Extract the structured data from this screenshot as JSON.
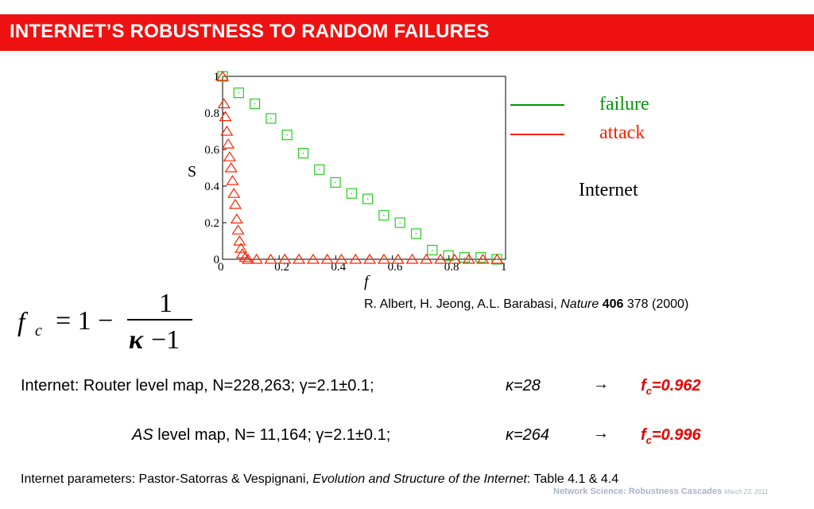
{
  "slide": {
    "title": "INTERNET’S ROBUSTNESS TO RANDOM FAILURES",
    "colors": {
      "title_bg": "#ee1111",
      "failure": "#009900",
      "attack": "#ff2200",
      "highlight": "#e60000"
    }
  },
  "plot": {
    "ylabel": "S",
    "xlabel": "f",
    "xticks": [
      "0",
      "0.2",
      "0.4",
      "0.6",
      "0.8",
      "1"
    ],
    "yticks": [
      "0",
      "0.2",
      "0.4",
      "0.6",
      "0.8",
      "1"
    ],
    "legend": {
      "failure": "failure",
      "attack": "attack"
    },
    "network_label": "Internet",
    "failure_points": [
      [
        0,
        1.0
      ],
      [
        0.057,
        0.91
      ],
      [
        0.114,
        0.85
      ],
      [
        0.171,
        0.77
      ],
      [
        0.228,
        0.68
      ],
      [
        0.285,
        0.58
      ],
      [
        0.342,
        0.49
      ],
      [
        0.399,
        0.42
      ],
      [
        0.456,
        0.36
      ],
      [
        0.513,
        0.33
      ],
      [
        0.57,
        0.24
      ],
      [
        0.627,
        0.2
      ],
      [
        0.684,
        0.14
      ],
      [
        0.741,
        0.05
      ],
      [
        0.798,
        0.02
      ],
      [
        0.855,
        0.01
      ],
      [
        0.912,
        0.01
      ],
      [
        0.969,
        0.0
      ]
    ],
    "attack_points": [
      [
        0,
        1.0
      ],
      [
        0.005,
        0.85
      ],
      [
        0.01,
        0.78
      ],
      [
        0.015,
        0.7
      ],
      [
        0.02,
        0.63
      ],
      [
        0.025,
        0.56
      ],
      [
        0.03,
        0.5
      ],
      [
        0.035,
        0.43
      ],
      [
        0.04,
        0.36
      ],
      [
        0.045,
        0.3
      ],
      [
        0.05,
        0.22
      ],
      [
        0.055,
        0.16
      ],
      [
        0.06,
        0.1
      ],
      [
        0.065,
        0.06
      ],
      [
        0.07,
        0.03
      ],
      [
        0.08,
        0.01
      ],
      [
        0.09,
        0.0
      ],
      [
        0.12,
        0.0
      ],
      [
        0.17,
        0.0
      ],
      [
        0.22,
        0.0
      ],
      [
        0.27,
        0.0
      ],
      [
        0.32,
        0.0
      ],
      [
        0.37,
        0.0
      ],
      [
        0.42,
        0.0
      ],
      [
        0.47,
        0.0
      ],
      [
        0.52,
        0.0
      ],
      [
        0.57,
        0.0
      ],
      [
        0.62,
        0.0
      ],
      [
        0.67,
        0.0
      ],
      [
        0.72,
        0.0
      ],
      [
        0.77,
        0.0
      ],
      [
        0.82,
        0.0
      ],
      [
        0.87,
        0.0
      ],
      [
        0.92,
        0.0
      ],
      [
        0.97,
        0.0
      ]
    ]
  },
  "formula": {
    "lhs": "f",
    "lhs_sub": "c",
    "eq": "= 1 −",
    "num": "1",
    "den_kappa": "κ",
    "den_rest": "−1"
  },
  "reference": {
    "authors": "R. Albert, H. Jeong, A.L. Barabasi, ",
    "journal": "Nature",
    "volume": "406",
    "rest": " 378 (2000)"
  },
  "rows": [
    {
      "label": "Internet: Router level map, N=228,263; γ=2.1±0.1;",
      "kappa": "κ=28",
      "arrow": "→",
      "fc_f": "f",
      "fc_sub": "c",
      "fc_val": "=0.962"
    },
    {
      "label_italic": "AS",
      "label": " level map, N=  11,164; γ=2.1±0.1;",
      "kappa": "κ=264",
      "arrow": "→",
      "fc_f": "f",
      "fc_sub": "c",
      "fc_val": "=0.996"
    }
  ],
  "params": {
    "prefix": "Internet parameters: Pastor-Satorras & Vespignani, ",
    "book": "Evolution and Structure of the Internet",
    "suffix": ": Table 4.1 & 4.4"
  },
  "footer": {
    "text": "Network Science: Robustness Cascades ",
    "date": "March 23, 2011"
  }
}
